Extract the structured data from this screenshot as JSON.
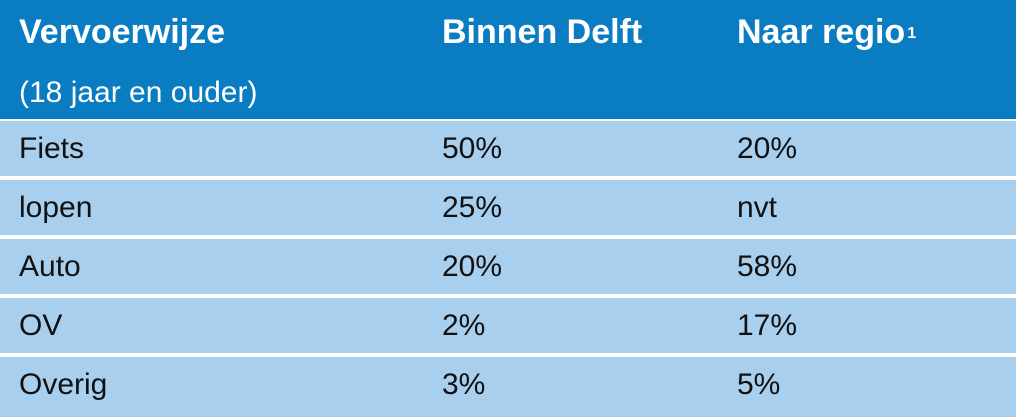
{
  "header": {
    "col1_title": "Vervoerwijze",
    "col1_subtitle": "(18 jaar en ouder)",
    "col2_title": "Binnen Delft",
    "col3_title": "Naar regio",
    "col3_footnote": "1"
  },
  "rows": [
    {
      "mode": "Fiets",
      "binnen": "50%",
      "regio": "20%"
    },
    {
      "mode": "lopen",
      "binnen": "25%",
      "regio": "nvt"
    },
    {
      "mode": "Auto",
      "binnen": "20%",
      "regio": "58%"
    },
    {
      "mode": "OV",
      "binnen": "2%",
      "regio": "17%"
    },
    {
      "mode": "Overig",
      "binnen": "3%",
      "regio": "5%"
    }
  ],
  "colors": {
    "header_bg": "#0a7cc1",
    "row_bg": "#a9cfee",
    "separator": "#ffffff"
  }
}
